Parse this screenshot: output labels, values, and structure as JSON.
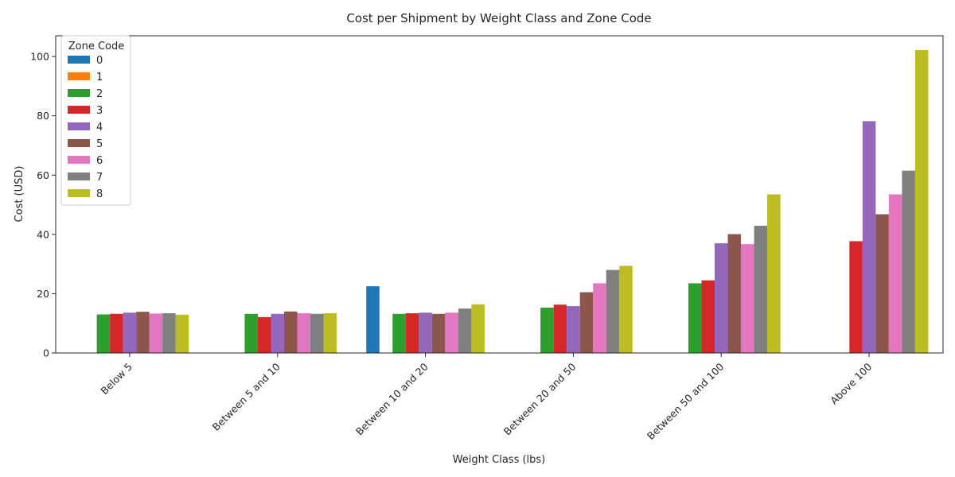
{
  "chart_data": {
    "type": "bar",
    "title": "Cost per Shipment by Weight Class and Zone Code",
    "xlabel": "Weight Class (lbs)",
    "ylabel": "Cost (USD)",
    "ylim": [
      0,
      107
    ],
    "yticks": [
      0,
      20,
      40,
      60,
      80,
      100
    ],
    "grid": false,
    "legend": {
      "title": "Zone Code",
      "placement": "top-left"
    },
    "categories": [
      "Below 5",
      "Between 5 and 10",
      "Between 10 and 20",
      "Between 20 and 50",
      "Between 50 and 100",
      "Above 100"
    ],
    "series": [
      {
        "name": "0",
        "color": "#1f77b4",
        "values": [
          null,
          null,
          22.5,
          null,
          null,
          null
        ]
      },
      {
        "name": "1",
        "color": "#ff7f0e",
        "values": [
          null,
          null,
          null,
          null,
          null,
          null
        ]
      },
      {
        "name": "2",
        "color": "#2ca02c",
        "values": [
          13.0,
          13.2,
          13.2,
          15.3,
          23.5,
          null
        ]
      },
      {
        "name": "3",
        "color": "#d62728",
        "values": [
          13.2,
          12.1,
          13.4,
          16.3,
          24.5,
          37.7
        ]
      },
      {
        "name": "4",
        "color": "#9467bd",
        "values": [
          13.6,
          13.2,
          13.6,
          15.8,
          37.0,
          78.2
        ]
      },
      {
        "name": "5",
        "color": "#8c564b",
        "values": [
          13.9,
          14.0,
          13.2,
          20.5,
          40.1,
          46.8
        ]
      },
      {
        "name": "6",
        "color": "#e377c2",
        "values": [
          13.3,
          13.4,
          13.6,
          23.5,
          36.7,
          53.5
        ]
      },
      {
        "name": "7",
        "color": "#7f7f7f",
        "values": [
          13.4,
          13.2,
          15.0,
          28.0,
          42.9,
          61.5
        ]
      },
      {
        "name": "8",
        "color": "#bcbd22",
        "values": [
          12.9,
          13.4,
          16.4,
          29.4,
          53.5,
          102.2
        ]
      }
    ]
  }
}
